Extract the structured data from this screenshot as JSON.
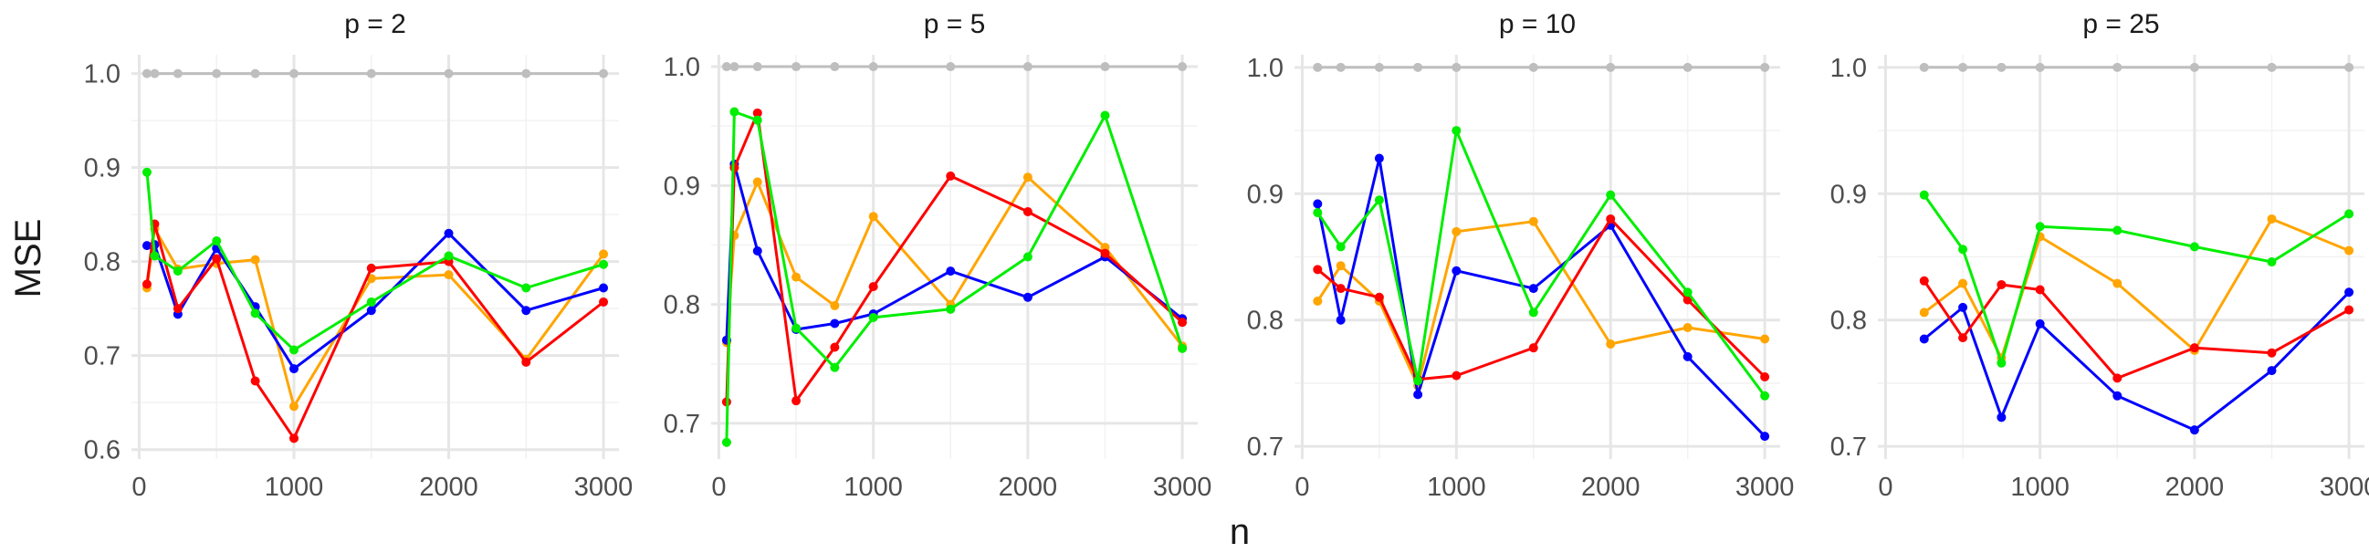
{
  "chart_data": {
    "type": "line",
    "xlabel": "n",
    "ylabel": "MSE",
    "grid": true,
    "panels": [
      {
        "title": "p = 2",
        "xlim": [
          -50,
          3100
        ],
        "ylim": [
          0.59,
          1.02
        ],
        "xticks": [
          0,
          1000,
          2000,
          3000
        ],
        "yticks": [
          0.6,
          0.7,
          0.8,
          0.9,
          1.0
        ],
        "yticklabels": [
          "0.6",
          "0.7",
          "0.8",
          "0.9",
          "1.0"
        ],
        "series": [
          {
            "color": "#bebebe",
            "x": [
              50,
              100,
              250,
              500,
              750,
              1000,
              1500,
              2000,
              2500,
              3000
            ],
            "y": [
              1.0,
              1.0,
              1.0,
              1.0,
              1.0,
              1.0,
              1.0,
              1.0,
              1.0,
              1.0
            ]
          },
          {
            "color": "#ffa500",
            "x": [
              50,
              100,
              250,
              500,
              750,
              1000,
              1500,
              2000,
              2500,
              3000
            ],
            "y": [
              0.772,
              0.835,
              0.792,
              0.798,
              0.802,
              0.646,
              0.782,
              0.786,
              0.696,
              0.808
            ]
          },
          {
            "color": "#0000ff",
            "x": [
              50,
              100,
              250,
              500,
              750,
              1000,
              1500,
              2000,
              2500,
              3000
            ],
            "y": [
              0.817,
              0.818,
              0.744,
              0.814,
              0.752,
              0.686,
              0.748,
              0.83,
              0.748,
              0.772
            ]
          },
          {
            "color": "#ff0000",
            "x": [
              50,
              100,
              250,
              500,
              750,
              1000,
              1500,
              2000,
              2500,
              3000
            ],
            "y": [
              0.776,
              0.84,
              0.75,
              0.803,
              0.673,
              0.612,
              0.793,
              0.8,
              0.693,
              0.757
            ]
          },
          {
            "color": "#00ee00",
            "x": [
              50,
              100,
              250,
              500,
              750,
              1000,
              1500,
              2000,
              2500,
              3000
            ],
            "y": [
              0.895,
              0.806,
              0.79,
              0.822,
              0.745,
              0.706,
              0.757,
              0.806,
              0.772,
              0.797
            ]
          }
        ]
      },
      {
        "title": "p = 5",
        "xlim": [
          -50,
          3100
        ],
        "ylim": [
          0.67,
          1.01
        ],
        "xticks": [
          0,
          1000,
          2000,
          3000
        ],
        "yticks": [
          0.7,
          0.8,
          0.9,
          1.0
        ],
        "yticklabels": [
          "0.7",
          "0.8",
          "0.9",
          "1.0"
        ],
        "series": [
          {
            "color": "#bebebe",
            "x": [
              50,
              100,
              250,
              500,
              750,
              1000,
              1500,
              2000,
              2500,
              3000
            ],
            "y": [
              1.0,
              1.0,
              1.0,
              1.0,
              1.0,
              1.0,
              1.0,
              1.0,
              1.0,
              1.0
            ]
          },
          {
            "color": "#ffa500",
            "x": [
              50,
              100,
              250,
              500,
              750,
              1000,
              1500,
              2000,
              2500,
              3000
            ],
            "y": [
              0.768,
              0.858,
              0.903,
              0.823,
              0.799,
              0.874,
              0.8,
              0.907,
              0.848,
              0.765
            ]
          },
          {
            "color": "#0000ff",
            "x": [
              50,
              100,
              250,
              500,
              750,
              1000,
              1500,
              2000,
              2500,
              3000
            ],
            "y": [
              0.77,
              0.918,
              0.845,
              0.779,
              0.784,
              0.792,
              0.828,
              0.806,
              0.84,
              0.788
            ]
          },
          {
            "color": "#ff0000",
            "x": [
              50,
              100,
              250,
              500,
              750,
              1000,
              1500,
              2000,
              2500,
              3000
            ],
            "y": [
              0.718,
              0.915,
              0.961,
              0.719,
              0.764,
              0.815,
              0.908,
              0.878,
              0.843,
              0.785
            ]
          },
          {
            "color": "#00ee00",
            "x": [
              50,
              100,
              250,
              500,
              750,
              1000,
              1500,
              2000,
              2500,
              3000
            ],
            "y": [
              0.684,
              0.962,
              0.955,
              0.78,
              0.747,
              0.789,
              0.796,
              0.84,
              0.959,
              0.763
            ]
          }
        ]
      },
      {
        "title": "p = 10",
        "xlim": [
          -50,
          3100
        ],
        "ylim": [
          0.69,
          1.01
        ],
        "xticks": [
          0,
          1000,
          2000,
          3000
        ],
        "yticks": [
          0.7,
          0.8,
          0.9,
          1.0
        ],
        "yticklabels": [
          "0.7",
          "0.8",
          "0.9",
          "1.0"
        ],
        "series": [
          {
            "color": "#bebebe",
            "x": [
              100,
              250,
              500,
              750,
              1000,
              1500,
              2000,
              2500,
              3000
            ],
            "y": [
              1.0,
              1.0,
              1.0,
              1.0,
              1.0,
              1.0,
              1.0,
              1.0,
              1.0
            ]
          },
          {
            "color": "#ffa500",
            "x": [
              100,
              250,
              500,
              750,
              1000,
              1500,
              2000,
              2500,
              3000
            ],
            "y": [
              0.815,
              0.843,
              0.815,
              0.748,
              0.87,
              0.878,
              0.781,
              0.794,
              0.785
            ]
          },
          {
            "color": "#0000ff",
            "x": [
              100,
              250,
              500,
              750,
              1000,
              1500,
              2000,
              2500,
              3000
            ],
            "y": [
              0.892,
              0.8,
              0.928,
              0.741,
              0.839,
              0.825,
              0.875,
              0.771,
              0.708
            ]
          },
          {
            "color": "#ff0000",
            "x": [
              100,
              250,
              500,
              750,
              1000,
              1500,
              2000,
              2500,
              3000
            ],
            "y": [
              0.84,
              0.825,
              0.818,
              0.753,
              0.756,
              0.778,
              0.88,
              0.816,
              0.755
            ]
          },
          {
            "color": "#00ee00",
            "x": [
              100,
              250,
              500,
              750,
              1000,
              1500,
              2000,
              2500,
              3000
            ],
            "y": [
              0.885,
              0.858,
              0.895,
              0.752,
              0.95,
              0.806,
              0.899,
              0.822,
              0.74
            ]
          }
        ]
      },
      {
        "title": "p = 25",
        "xlim": [
          -50,
          3100
        ],
        "ylim": [
          0.69,
          1.01
        ],
        "xticks": [
          0,
          1000,
          2000,
          3000
        ],
        "yticks": [
          0.7,
          0.8,
          0.9,
          1.0
        ],
        "yticklabels": [
          "0.7",
          "0.8",
          "0.9",
          "1.0"
        ],
        "series": [
          {
            "color": "#bebebe",
            "x": [
              250,
              500,
              750,
              1000,
              1500,
              2000,
              2500,
              3000
            ],
            "y": [
              1.0,
              1.0,
              1.0,
              1.0,
              1.0,
              1.0,
              1.0,
              1.0
            ]
          },
          {
            "color": "#ffa500",
            "x": [
              250,
              500,
              750,
              1000,
              1500,
              2000,
              2500,
              3000
            ],
            "y": [
              0.806,
              0.829,
              0.77,
              0.866,
              0.829,
              0.776,
              0.88,
              0.855
            ]
          },
          {
            "color": "#0000ff",
            "x": [
              250,
              500,
              750,
              1000,
              1500,
              2000,
              2500,
              3000
            ],
            "y": [
              0.785,
              0.81,
              0.723,
              0.797,
              0.74,
              0.713,
              0.76,
              0.822
            ]
          },
          {
            "color": "#ff0000",
            "x": [
              250,
              500,
              750,
              1000,
              1500,
              2000,
              2500,
              3000
            ],
            "y": [
              0.831,
              0.786,
              0.828,
              0.824,
              0.754,
              0.778,
              0.774,
              0.808
            ]
          },
          {
            "color": "#00ee00",
            "x": [
              250,
              500,
              750,
              1000,
              1500,
              2000,
              2500,
              3000
            ],
            "y": [
              0.899,
              0.856,
              0.766,
              0.874,
              0.871,
              0.858,
              0.846,
              0.884
            ]
          }
        ]
      }
    ]
  }
}
